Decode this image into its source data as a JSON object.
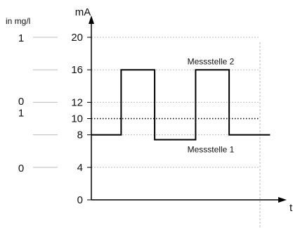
{
  "chart_data": {
    "type": "line",
    "title": "",
    "ylabel": "mA",
    "xlabel": "t",
    "secondary_axis_label": "in mg/l",
    "ylim": [
      0,
      22
    ],
    "ytick_labels": [
      "0",
      "4",
      "8",
      "10",
      "12",
      "16",
      "20"
    ],
    "mgl_labels": [
      {
        "at_mA": 20,
        "text": "1"
      },
      {
        "at_mA": 12.2,
        "text": "0"
      },
      {
        "at_mA": 10.8,
        "text": "1"
      },
      {
        "at_mA": 4,
        "text": "0"
      }
    ],
    "threshold_mA": 10,
    "series": [
      {
        "name": "",
        "x": [
          0.0,
          0.8,
          0.8,
          1.7,
          1.7,
          2.8,
          2.8,
          3.7,
          3.7,
          4.8
        ],
        "y": [
          8,
          8,
          16,
          16,
          7.4,
          7.4,
          16,
          16,
          8,
          8
        ]
      }
    ],
    "annotations": [
      {
        "text": "Messstelle 2",
        "at_x": 2.2,
        "at_y": 17
      },
      {
        "text": "Messstelle 1",
        "at_x": 2.2,
        "at_y": 6.2
      }
    ],
    "colors": {
      "axis": "#000000",
      "grid": "#bdbdbd",
      "signal": "#000000"
    }
  }
}
